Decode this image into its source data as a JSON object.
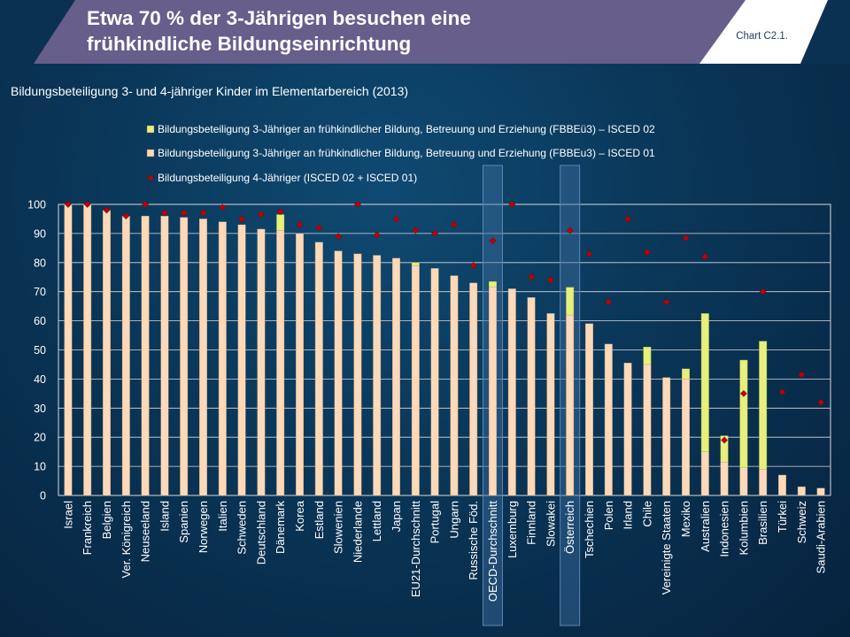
{
  "header": {
    "title_line1": "Etwa 70 % der 3-Jährigen besuchen eine",
    "title_line2": "frühkindliche Bildungseinrichtung",
    "chart_ref": "Chart C2.1."
  },
  "colors": {
    "isced02": "#e6f07a",
    "isced01": "#fdd9b8",
    "diamond": "#c00000",
    "highlight": "#3f6f9f"
  },
  "chart_data": {
    "type": "bar",
    "subtitle": "Bildungsbeteiligung 3- und 4-jähriger Kinder im Elementarbereich (2013)",
    "ylim": [
      0,
      100
    ],
    "yticks": [
      0,
      10,
      20,
      30,
      40,
      50,
      60,
      70,
      80,
      90,
      100
    ],
    "grid": true,
    "stacked": true,
    "legend_position": "top",
    "highlighted_categories": [
      "OECD-Durchschnitt",
      "Österreich"
    ],
    "categories": [
      "Israel",
      "Frankreich",
      "Belgien",
      "Ver. Königreich",
      "Neuseeland",
      "Island",
      "Spanien",
      "Norwegen",
      "Italien",
      "Schweden",
      "Deutschland",
      "Dänemark",
      "Korea",
      "Estland",
      "Slowenien",
      "Niederlande",
      "Lettland",
      "Japan",
      "EU21-Durchschnitt",
      "Portugal",
      "Ungarn",
      "Russische Föd.",
      "OECD-Durchschnitt",
      "Luxemburg",
      "Finnland",
      "Slowakei",
      "Österreich",
      "Tschechien",
      "Polen",
      "Irland",
      "Chile",
      "Vereinigte Staaten",
      "Mexiko",
      "Australien",
      "Indonesien",
      "Kolumbien",
      "Brasilien",
      "Türkei",
      "Schweiz",
      "Saudi-Arabien"
    ],
    "series": [
      {
        "name": "Bildungsbeteiligung 3-Jähriger an frühkindlicher Bildung, Betreuung und Erziehung (FBBEu3) – ISCED 01",
        "kind": "bar",
        "values": [
          100,
          100,
          98,
          96,
          96,
          96,
          95.5,
          95,
          94,
          93,
          91.5,
          91,
          90,
          87,
          84,
          83,
          82.5,
          81.5,
          79,
          78,
          75.5,
          73,
          71.5,
          71,
          68,
          62.5,
          62,
          59,
          52,
          45.5,
          45,
          40.5,
          40,
          15,
          11.5,
          9.5,
          9,
          7,
          3,
          2.5
        ]
      },
      {
        "name": "Bildungsbeteiligung 3-Jähriger an frühkindlicher Bildung, Betreuung und Erziehung (FBBEü3) – ISCED 02",
        "kind": "bar",
        "values": [
          0,
          0,
          0,
          0,
          0,
          0,
          0,
          0,
          0,
          0,
          0,
          5.5,
          0,
          0,
          0,
          0,
          0,
          0,
          1,
          0,
          0,
          0,
          2,
          0,
          0,
          0,
          9.5,
          0,
          0,
          0,
          6,
          0,
          3.5,
          47.5,
          9,
          37,
          44,
          0,
          0,
          0
        ]
      },
      {
        "name": "Bildungsbeteiligung 4-Jähriger (ISCED 02 + ISCED 01)",
        "kind": "marker",
        "values": [
          100,
          100,
          98,
          96,
          100,
          97,
          97,
          97,
          99,
          95,
          96.5,
          97.5,
          93,
          92,
          89,
          100,
          89.5,
          95,
          91,
          90,
          93,
          79,
          87.5,
          100,
          75,
          74,
          91,
          83,
          66.5,
          95,
          83.5,
          66.5,
          88.5,
          82,
          19,
          35,
          70,
          35.5,
          41.5,
          32
        ]
      }
    ],
    "legend_order": [
      1,
      0,
      2
    ]
  }
}
